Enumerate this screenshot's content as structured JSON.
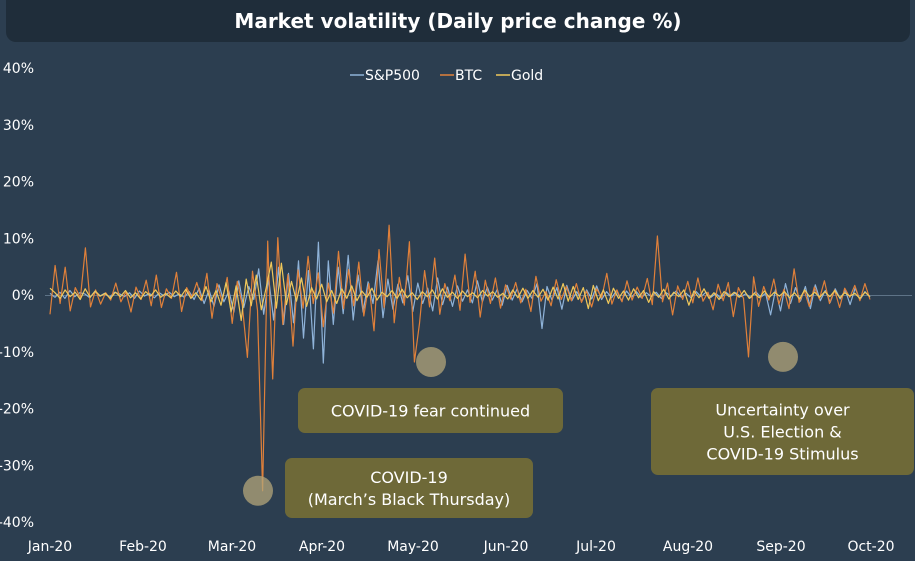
{
  "chart_data": {
    "type": "line",
    "title": "Market volatility (Daily price change %)",
    "xlabel": "",
    "ylabel": "",
    "x_ticks": [
      "Jan-20",
      "Feb-20",
      "Mar-20",
      "Apr-20",
      "May-20",
      "Jun-20",
      "Jul-20",
      "Aug-20",
      "Sep-20",
      "Oct-20"
    ],
    "y_ticks": [
      "40%",
      "30%",
      "20%",
      "10%",
      "0%",
      "-10%",
      "-20%",
      "-30%",
      "-40%"
    ],
    "ylim": [
      -40,
      40
    ],
    "grid": false,
    "legend_placement": "top-center",
    "series": [
      {
        "name": "S&P500",
        "color": "#8fb3d9",
        "values": [
          0.3,
          -0.4,
          0.5,
          -0.6,
          0.8,
          -0.3,
          0.4,
          0.2,
          -0.5,
          0.6,
          -0.2,
          0.3,
          -0.4,
          0.5,
          0.2,
          -0.3,
          0.4,
          -0.6,
          0.7,
          -0.2,
          0.3,
          -0.5,
          0.4,
          -0.2,
          0.5,
          -0.3,
          0.2,
          -0.4,
          0.6,
          -0.8,
          1.2,
          -1.5,
          0.9,
          -2.0,
          1.8,
          -1.2,
          0.7,
          -3.0,
          2.5,
          -2.2,
          1.5,
          -0.8,
          4.6,
          -3.4,
          2.9,
          -4.4,
          4.9,
          -5.2,
          3.8,
          -4.9,
          6.0,
          -7.6,
          4.3,
          -9.5,
          9.3,
          -12.0,
          6.0,
          -5.2,
          4.9,
          -3.3,
          7.0,
          -4.4,
          3.5,
          -3.0,
          2.3,
          -1.5,
          6.0,
          -4.0,
          2.8,
          -2.5,
          1.9,
          -1.4,
          3.4,
          -2.9,
          2.1,
          -1.5,
          1.2,
          -2.8,
          3.0,
          -1.7,
          1.4,
          -2.0,
          1.6,
          -1.1,
          0.9,
          -1.4,
          2.5,
          -1.2,
          1.4,
          -0.9,
          1.0,
          -1.8,
          1.7,
          -0.9,
          1.1,
          -1.2,
          0.8,
          -0.6,
          2.0,
          -5.9,
          1.5,
          -0.9,
          1.3,
          -2.5,
          1.7,
          -1.0,
          0.6,
          -1.1,
          0.9,
          -0.7,
          1.6,
          -0.8,
          0.6,
          -0.5,
          0.8,
          -1.0,
          0.7,
          -0.4,
          0.6,
          -0.5,
          0.4,
          -0.3,
          0.5,
          -0.6,
          0.4,
          -0.2,
          0.7,
          -0.4,
          0.3,
          -0.5,
          0.6,
          -0.3,
          0.5,
          -0.4,
          0.3,
          -0.6,
          0.5,
          -0.2,
          0.4,
          -0.3,
          0.2,
          -0.5,
          0.6,
          -0.4,
          0.3,
          -3.5,
          1.0,
          -2.8,
          2.0,
          -1.5,
          1.3,
          -1.1,
          1.5,
          -2.4,
          1.8,
          -1.0,
          0.8,
          -1.3,
          1.1,
          -0.7,
          0.9,
          -1.7,
          1.2,
          -0.8,
          0.6,
          -0.4
        ]
      },
      {
        "name": "BTC",
        "color": "#e0803a",
        "values": [
          -3.4,
          5.2,
          -1.5,
          4.9,
          -2.8,
          1.3,
          -0.5,
          8.3,
          -2.1,
          0.9,
          -1.6,
          0.4,
          -0.9,
          2.1,
          -1.2,
          0.6,
          -3.0,
          1.4,
          -0.8,
          2.6,
          -1.9,
          3.5,
          -2.2,
          1.1,
          -0.6,
          4.0,
          -2.9,
          1.3,
          -0.5,
          2.2,
          -1.0,
          3.8,
          -4.1,
          2.0,
          -1.1,
          3.1,
          -5.0,
          2.4,
          -1.8,
          -11.0,
          4.2,
          -2.7,
          -34.5,
          9.5,
          -14.8,
          10.1,
          -5.2,
          3.6,
          -9.0,
          4.4,
          -2.3,
          6.8,
          -1.5,
          3.9,
          -5.6,
          2.1,
          -3.2,
          7.7,
          -2.4,
          4.5,
          -1.9,
          5.8,
          -3.7,
          2.0,
          -6.3,
          8.0,
          -2.2,
          12.3,
          -4.9,
          3.1,
          -1.8,
          9.4,
          -11.8,
          -5.0,
          4.3,
          -2.1,
          6.5,
          -3.4,
          2.0,
          -1.0,
          3.5,
          -2.7,
          7.2,
          -1.3,
          4.2,
          -3.9,
          2.6,
          -1.5,
          3.0,
          -2.3,
          1.8,
          -0.7,
          2.2,
          -1.4,
          1.0,
          -2.9,
          3.3,
          -1.1,
          0.6,
          -1.9,
          2.7,
          -0.8,
          1.5,
          -1.0,
          2.0,
          -1.3,
          0.7,
          -2.1,
          1.1,
          -0.5,
          3.8,
          -1.6,
          0.9,
          -1.2,
          2.5,
          -0.9,
          1.4,
          -0.6,
          2.9,
          -1.7,
          10.4,
          -1.2,
          2.1,
          -3.5,
          1.6,
          -0.8,
          2.4,
          -1.4,
          3.0,
          -1.1,
          0.5,
          -2.6,
          1.9,
          -1.0,
          2.2,
          -3.8,
          1.3,
          -0.6,
          -10.9,
          3.2,
          -2.0,
          1.5,
          -0.9,
          2.8,
          -1.6,
          1.0,
          -2.4,
          4.6,
          -1.3,
          0.8,
          -2.0,
          1.4,
          -0.7,
          2.5,
          -1.5,
          0.9,
          -2.2,
          1.2,
          -0.4,
          1.7,
          -1.0,
          2.0,
          -0.8
        ]
      },
      {
        "name": "Gold",
        "color": "#f0c85a",
        "values": [
          1.2,
          0.4,
          -0.6,
          0.9,
          -0.3,
          0.5,
          -0.8,
          1.1,
          -0.4,
          0.7,
          -0.2,
          0.3,
          -0.6,
          0.5,
          -0.3,
          0.8,
          -0.5,
          0.4,
          -0.7,
          0.6,
          -0.2,
          0.9,
          -0.4,
          0.3,
          -0.5,
          0.7,
          -0.3,
          1.0,
          -0.6,
          0.4,
          -0.9,
          1.5,
          -1.2,
          0.8,
          -1.8,
          2.2,
          -3.0,
          1.6,
          -4.5,
          2.8,
          -1.9,
          3.5,
          -2.6,
          1.4,
          5.8,
          -2.3,
          5.6,
          -1.7,
          2.4,
          -1.1,
          3.0,
          -2.0,
          1.3,
          -0.7,
          1.9,
          -1.2,
          0.8,
          -1.5,
          1.1,
          -0.6,
          1.6,
          -1.0,
          0.7,
          -0.4,
          1.2,
          -0.9,
          0.5,
          -0.3,
          0.8,
          -0.6,
          1.0,
          -0.5,
          0.4,
          -0.8,
          0.6,
          -0.3,
          0.9,
          -0.7,
          1.1,
          -0.4,
          0.5,
          -0.6,
          0.7,
          -0.3,
          0.4,
          -0.5,
          0.8,
          -0.2,
          0.6,
          -0.4,
          0.3,
          -0.7,
          0.9,
          -0.5,
          1.2,
          -0.6,
          0.8,
          -0.4,
          1.0,
          -0.9,
          1.4,
          -0.7,
          2.0,
          -1.1,
          1.5,
          -0.8,
          1.3,
          -2.4,
          1.7,
          -1.0,
          0.9,
          -1.5,
          1.2,
          -0.6,
          0.7,
          -0.9,
          1.1,
          -0.5,
          0.8,
          -1.3,
          0.6,
          -0.4,
          1.0,
          -0.7,
          0.5,
          -0.3,
          0.9,
          -1.8,
          0.7,
          -0.5,
          1.1,
          -0.6,
          0.4,
          -0.8,
          0.6,
          -0.3,
          0.5,
          -0.4,
          0.8,
          -0.6,
          0.3,
          -0.5,
          0.7,
          -0.4,
          0.5,
          -0.2,
          0.6,
          -0.5,
          0.4,
          -0.7,
          0.9,
          -0.3,
          0.5,
          -0.4,
          0.6,
          -0.3,
          0.8,
          -0.5,
          0.4,
          -0.2,
          0.3,
          -0.6,
          0.5,
          -0.3
        ]
      }
    ],
    "annotations": [
      {
        "text_lines": [
          "COVID-19",
          "(March’s Black Thursday)"
        ],
        "x": "Mar-20",
        "y": -34.5
      },
      {
        "text_lines": [
          "COVID-19 fear continued"
        ],
        "x": "May-20",
        "y": -11.8
      },
      {
        "text_lines": [
          "Uncertainty over",
          "U.S. Election &",
          "COVID-19 Stimulus"
        ],
        "x": "Sep-20",
        "y": -10.9
      }
    ]
  }
}
